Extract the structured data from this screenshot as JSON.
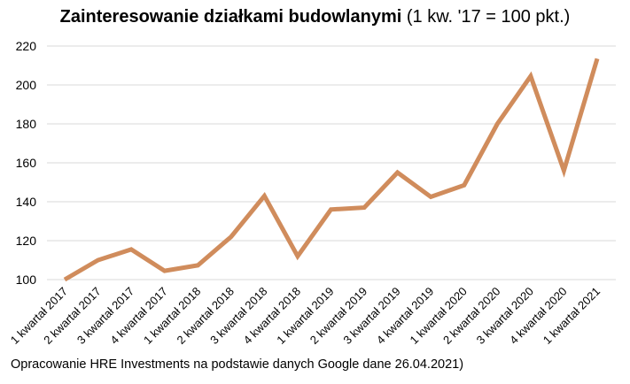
{
  "chart_data": {
    "type": "line",
    "title": "Zainteresowanie działkami budowlanymi",
    "subtitle": "(1 kw. '17 = 100 pkt.)",
    "xlabel": "",
    "ylabel": "",
    "ylim": [
      100,
      220
    ],
    "yticks": [
      100,
      120,
      140,
      160,
      180,
      200,
      220
    ],
    "grid": true,
    "legend": "none",
    "line_color": "#D08C5C",
    "categories": [
      "1 kwartał 2017",
      "2 kwartał 2017",
      "3 kwartał 2017",
      "4 kwartał 2017",
      "1 kwartał 2018",
      "2 kwartał 2018",
      "3 kwartał 2018",
      "4 kwartał 2018",
      "1 kwartał 2019",
      "2 kwartał 2019",
      "3 kwartał 2019",
      "4 kwartał 2019",
      "1 kwartał 2020",
      "2 kwartał 2020",
      "3 kwartał 2020",
      "4 kwartał 2020",
      "1 kwartał 2021"
    ],
    "series": [
      {
        "name": "Zainteresowanie działkami budowlanymi",
        "values": [
          100,
          110,
          115.5,
          104.5,
          107.3,
          122,
          143,
          112,
          136,
          137,
          155,
          142.5,
          148.5,
          180,
          204.5,
          156,
          213.5
        ]
      }
    ]
  },
  "footer": "Opracowanie HRE Investments na podstawie danych Google dane 26.04.2021)"
}
